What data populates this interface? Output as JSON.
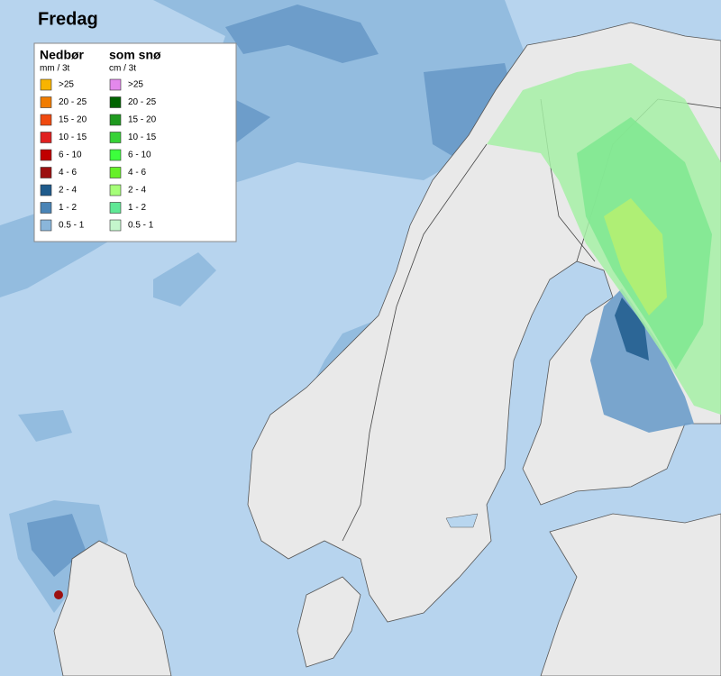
{
  "title": "Fredag",
  "legend": {
    "rain": {
      "heading": "Nedbør",
      "unit": "mm / 3t",
      "items": [
        {
          "label": ">25",
          "color": "#f8b400"
        },
        {
          "label": "20 - 25",
          "color": "#f07c00"
        },
        {
          "label": "15 - 20",
          "color": "#f04a10"
        },
        {
          "label": "10 - 15",
          "color": "#e02020"
        },
        {
          "label": "6 - 10",
          "color": "#c00000"
        },
        {
          "label": "4 - 6",
          "color": "#9c1010"
        },
        {
          "label": "2 - 4",
          "color": "#1f5b8c"
        },
        {
          "label": "1 - 2",
          "color": "#4a84b6"
        },
        {
          "label": "0.5 - 1",
          "color": "#8ab6da"
        }
      ]
    },
    "snow": {
      "heading": "som snø",
      "unit": "cm / 3t",
      "items": [
        {
          "label": ">25",
          "color": "#e488ec"
        },
        {
          "label": "20 - 25",
          "color": "#006400"
        },
        {
          "label": "15 - 20",
          "color": "#1f9a1f"
        },
        {
          "label": "10 - 15",
          "color": "#36d236"
        },
        {
          "label": "6 - 10",
          "color": "#3cff3c"
        },
        {
          "label": "4 - 6",
          "color": "#66f028"
        },
        {
          "label": "2 - 4",
          "color": "#a6ff78"
        },
        {
          "label": "1 - 2",
          "color": "#5fe895"
        },
        {
          "label": "0.5 - 1",
          "color": "#c4f6cc"
        }
      ]
    }
  }
}
